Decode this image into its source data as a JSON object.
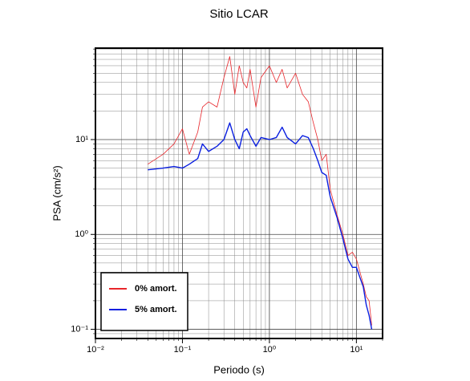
{
  "chart_data": {
    "type": "line",
    "title": "Sitio LCAR",
    "x_label": "Periodo (s)",
    "y_label": "PSA (cm/s²)",
    "x_scale": "log",
    "y_scale": "log",
    "grid": true,
    "legend": "lower-left",
    "xlim": [
      0.01,
      20
    ],
    "ylim": [
      0.08,
      92
    ],
    "xticks": [
      {
        "value": 0.01,
        "label": "10⁻²"
      },
      {
        "value": 0.1,
        "label": "10⁻¹"
      },
      {
        "value": 1,
        "label": "10⁰"
      },
      {
        "value": 10,
        "label": "10¹"
      }
    ],
    "yticks": [
      {
        "value": 0.1,
        "label": "10⁻¹"
      },
      {
        "value": 1,
        "label": "10⁰"
      },
      {
        "value": 10,
        "label": "10¹"
      }
    ],
    "xminor_ticks": [
      0.02,
      0.03,
      0.04,
      0.05,
      0.06,
      0.07,
      0.08,
      0.09,
      0.2,
      0.3,
      0.4,
      0.5,
      0.6,
      0.7,
      0.8,
      0.9,
      2,
      3,
      4,
      5,
      6,
      7,
      8,
      9,
      20
    ],
    "yminor_ticks": [
      0.09,
      0.2,
      0.3,
      0.4,
      0.5,
      0.6,
      0.7,
      0.8,
      0.9,
      2,
      3,
      4,
      5,
      6,
      7,
      8,
      9,
      20,
      30,
      40,
      50,
      60,
      70,
      80,
      90
    ],
    "x": [
      0.04,
      0.06,
      0.08,
      0.1,
      0.12,
      0.15,
      0.17,
      0.2,
      0.25,
      0.3,
      0.35,
      0.4,
      0.45,
      0.5,
      0.55,
      0.6,
      0.7,
      0.8,
      1.0,
      1.2,
      1.4,
      1.6,
      2.0,
      2.4,
      2.8,
      3.2,
      3.6,
      4.0,
      4.5,
      5.0,
      6.0,
      7.0,
      8.0,
      9.0,
      10,
      11,
      12,
      13,
      14,
      15
    ],
    "series": [
      {
        "name": "0% amort.",
        "color": "#e8262b",
        "width": 0.8,
        "values": [
          5.5,
          7,
          9,
          13,
          7,
          12,
          22,
          25,
          22,
          45,
          75,
          30,
          60,
          40,
          35,
          55,
          22,
          45,
          60,
          40,
          55,
          35,
          50,
          30,
          25,
          15,
          10,
          6,
          7,
          3,
          1.6,
          1.0,
          0.6,
          0.65,
          0.55,
          0.4,
          0.3,
          0.22,
          0.2,
          0.11
        ]
      },
      {
        "name": "5% amort.",
        "color": "#0a1fe0",
        "width": 1.4,
        "values": [
          4.8,
          5.0,
          5.2,
          5.0,
          5.5,
          6.3,
          9.0,
          7.5,
          8.5,
          10,
          15,
          10,
          8,
          12,
          13,
          11,
          8.5,
          10.5,
          10,
          10.5,
          13.5,
          10.5,
          9,
          11,
          10.5,
          8,
          6,
          4.5,
          4.2,
          2.5,
          1.5,
          0.9,
          0.55,
          0.45,
          0.45,
          0.35,
          0.28,
          0.18,
          0.14,
          0.1
        ]
      }
    ]
  }
}
